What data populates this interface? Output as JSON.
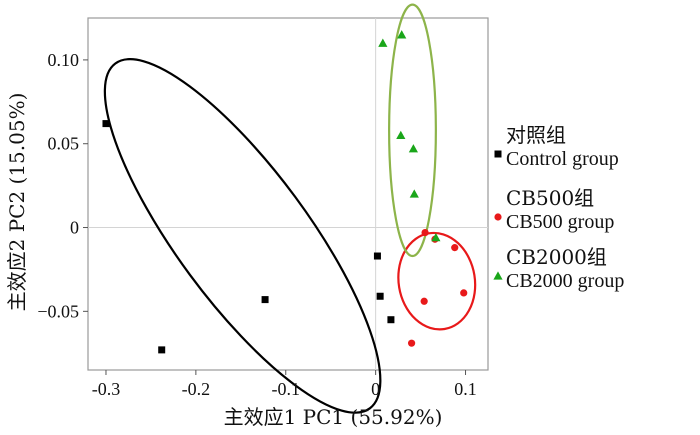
{
  "chart_data": {
    "type": "scatter",
    "xlabel": "主效应1 PC1 (55.92%)",
    "ylabel": "主效应2 PC2 (15.05%)",
    "xlim": [
      -0.32,
      0.125
    ],
    "ylim": [
      -0.085,
      0.125
    ],
    "xticks": [
      -0.3,
      -0.2,
      -0.1,
      0,
      0.1
    ],
    "xtick_labels": [
      "-0.3",
      "-0.2",
      "-0.1",
      "0",
      "0.1"
    ],
    "yticks": [
      0.1,
      0.05,
      0,
      -0.05
    ],
    "ytick_labels": [
      "0.10",
      "0.05",
      "0",
      "−0.05"
    ],
    "grid": false,
    "zero_lines": true,
    "legend_position": "right",
    "series": [
      {
        "name": "对照组",
        "name_en": "Control group",
        "marker": "square",
        "color": "#000000",
        "points": [
          [
            -0.3,
            0.062
          ],
          [
            -0.238,
            -0.073
          ],
          [
            -0.123,
            -0.043
          ],
          [
            0.002,
            -0.017
          ],
          [
            0.005,
            -0.041
          ],
          [
            0.017,
            -0.055
          ]
        ],
        "ellipse": {
          "cx": -0.148,
          "cy": -0.005,
          "rx": 0.175,
          "ry": 0.045,
          "angle_deg": -36,
          "color": "#000000"
        }
      },
      {
        "name": "CB500组",
        "name_en": "CB500  group",
        "marker": "circle",
        "color": "#e8191a",
        "points": [
          [
            0.055,
            -0.003
          ],
          [
            0.066,
            -0.007
          ],
          [
            0.088,
            -0.012
          ],
          [
            0.098,
            -0.039
          ],
          [
            0.054,
            -0.044
          ],
          [
            0.04,
            -0.069
          ]
        ],
        "ellipse": {
          "cx": 0.068,
          "cy": -0.032,
          "rx": 0.042,
          "ry": 0.029,
          "angle_deg": 5,
          "color": "#e8191a"
        }
      },
      {
        "name": "CB2000组",
        "name_en": "CB2000  group",
        "marker": "triangle",
        "color": "#1aa61a",
        "points": [
          [
            0.008,
            0.11
          ],
          [
            0.029,
            0.115
          ],
          [
            0.028,
            0.055
          ],
          [
            0.042,
            0.047
          ],
          [
            0.043,
            0.02
          ],
          [
            0.067,
            -0.006
          ]
        ],
        "ellipse": {
          "cx": 0.041,
          "cy": 0.058,
          "rx": 0.026,
          "ry": 0.075,
          "angle_deg": 0,
          "color": "#8db44a"
        }
      }
    ]
  }
}
